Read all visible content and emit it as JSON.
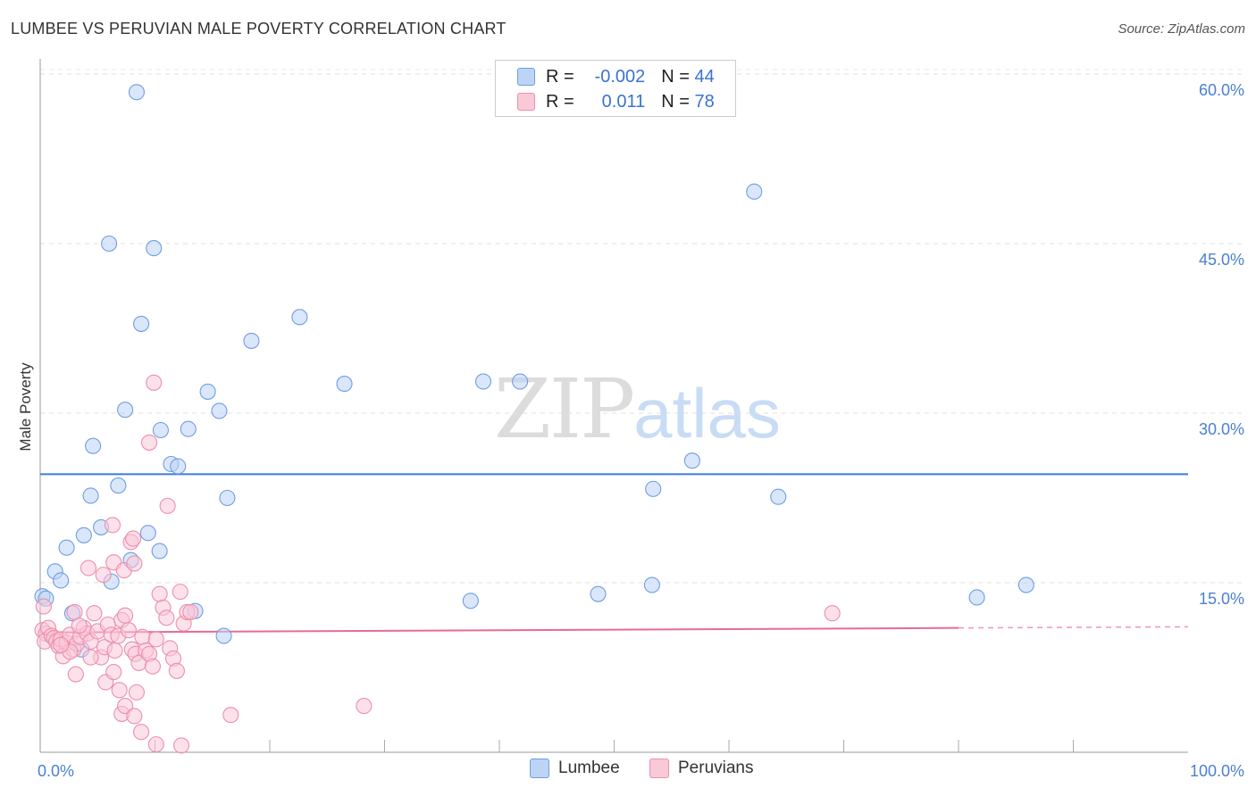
{
  "header": {
    "title": "LUMBEE VS PERUVIAN MALE POVERTY CORRELATION CHART",
    "source": "Source: ZipAtlas.com"
  },
  "watermark": {
    "zip": "ZIP",
    "atlas": "atlas"
  },
  "legend": {
    "rows": [
      {
        "r_label": "R =",
        "r_value": "-0.002",
        "n_label": "N =",
        "n_value": "44"
      },
      {
        "r_label": "R =",
        "r_value": "0.011",
        "n_label": "N =",
        "n_value": "78"
      }
    ]
  },
  "bottom_legend": {
    "lumbee": "Lumbee",
    "peruvians": "Peruvians"
  },
  "chart_data": {
    "type": "scatter",
    "title": "LUMBEE VS PERUVIAN MALE POVERTY CORRELATION CHART",
    "xlabel": "",
    "ylabel": "Male Poverty",
    "xlim": [
      0,
      100
    ],
    "ylim": [
      0,
      63
    ],
    "x_tick_labels": [
      "0.0%",
      "100.0%"
    ],
    "y_ticks": [
      15,
      30,
      45,
      60
    ],
    "y_tick_labels": [
      "15.0%",
      "30.0%",
      "45.0%",
      "60.0%"
    ],
    "colors": {
      "lumbee": "#6f9de0",
      "lumbee_fill": "#bcd4f5",
      "lumbee_line": "#3a7bd5",
      "peruvians": "#ec8fab",
      "peruvians_fill": "#f9c9d8",
      "peruvians_line": "#e96a94"
    },
    "series": [
      {
        "name": "Lumbee",
        "r": -0.002,
        "n": 44,
        "trend": {
          "x": [
            0,
            100
          ],
          "y": [
            24.6,
            24.6
          ],
          "solid_until": 100
        },
        "points": [
          [
            8.4,
            58.4
          ],
          [
            6.0,
            45.0
          ],
          [
            9.9,
            44.6
          ],
          [
            62.2,
            49.6
          ],
          [
            22.6,
            38.5
          ],
          [
            8.8,
            37.9
          ],
          [
            18.4,
            36.4
          ],
          [
            26.5,
            32.6
          ],
          [
            38.6,
            32.8
          ],
          [
            41.8,
            32.8
          ],
          [
            14.6,
            31.9
          ],
          [
            7.4,
            30.3
          ],
          [
            15.6,
            30.2
          ],
          [
            10.5,
            28.5
          ],
          [
            12.9,
            28.6
          ],
          [
            4.6,
            27.1
          ],
          [
            11.4,
            25.5
          ],
          [
            12.0,
            25.3
          ],
          [
            56.8,
            25.8
          ],
          [
            6.8,
            23.6
          ],
          [
            4.4,
            22.7
          ],
          [
            16.3,
            22.5
          ],
          [
            53.4,
            23.3
          ],
          [
            64.3,
            22.6
          ],
          [
            5.3,
            19.9
          ],
          [
            9.4,
            19.4
          ],
          [
            3.8,
            19.2
          ],
          [
            2.3,
            18.1
          ],
          [
            10.4,
            17.8
          ],
          [
            7.9,
            17.0
          ],
          [
            1.3,
            16.0
          ],
          [
            1.8,
            15.2
          ],
          [
            6.2,
            15.1
          ],
          [
            0.2,
            13.8
          ],
          [
            0.5,
            13.6
          ],
          [
            37.5,
            13.4
          ],
          [
            48.6,
            14.0
          ],
          [
            53.3,
            14.8
          ],
          [
            81.6,
            13.7
          ],
          [
            85.9,
            14.8
          ],
          [
            13.5,
            12.5
          ],
          [
            2.8,
            12.3
          ],
          [
            16.0,
            10.3
          ],
          [
            3.6,
            9.1
          ]
        ]
      },
      {
        "name": "Peruvians",
        "r": 0.011,
        "n": 78,
        "trend": {
          "x": [
            0,
            100
          ],
          "y": [
            10.6,
            11.1
          ],
          "solid_until": 80
        },
        "points": [
          [
            0.3,
            12.9
          ],
          [
            0.2,
            10.8
          ],
          [
            0.5,
            10.5
          ],
          [
            0.4,
            9.8
          ],
          [
            0.7,
            11.0
          ],
          [
            1.0,
            10.3
          ],
          [
            1.2,
            10.1
          ],
          [
            1.4,
            9.8
          ],
          [
            1.6,
            9.4
          ],
          [
            1.8,
            10.0
          ],
          [
            2.0,
            8.5
          ],
          [
            2.3,
            9.7
          ],
          [
            2.6,
            10.4
          ],
          [
            2.9,
            9.1
          ],
          [
            3.2,
            9.6
          ],
          [
            3.5,
            10.2
          ],
          [
            3.8,
            11.0
          ],
          [
            4.1,
            10.5
          ],
          [
            4.4,
            9.8
          ],
          [
            4.7,
            12.3
          ],
          [
            5.0,
            10.7
          ],
          [
            5.3,
            8.4
          ],
          [
            5.6,
            9.3
          ],
          [
            5.9,
            11.3
          ],
          [
            6.2,
            10.4
          ],
          [
            6.5,
            9.0
          ],
          [
            6.8,
            10.3
          ],
          [
            7.1,
            11.7
          ],
          [
            7.4,
            12.1
          ],
          [
            7.7,
            10.8
          ],
          [
            8.0,
            9.1
          ],
          [
            8.3,
            8.7
          ],
          [
            8.6,
            7.9
          ],
          [
            8.9,
            10.2
          ],
          [
            9.2,
            9.0
          ],
          [
            9.5,
            8.7
          ],
          [
            9.8,
            7.6
          ],
          [
            10.1,
            10.0
          ],
          [
            10.4,
            14.0
          ],
          [
            10.7,
            12.8
          ],
          [
            11.0,
            11.9
          ],
          [
            11.3,
            9.2
          ],
          [
            11.6,
            8.3
          ],
          [
            11.9,
            7.2
          ],
          [
            12.2,
            14.2
          ],
          [
            12.5,
            11.4
          ],
          [
            12.8,
            12.4
          ],
          [
            4.2,
            16.3
          ],
          [
            5.5,
            15.7
          ],
          [
            6.4,
            16.8
          ],
          [
            7.3,
            16.1
          ],
          [
            7.9,
            18.6
          ],
          [
            8.2,
            16.7
          ],
          [
            6.3,
            20.1
          ],
          [
            8.1,
            18.9
          ],
          [
            11.1,
            21.8
          ],
          [
            9.5,
            27.4
          ],
          [
            9.9,
            32.7
          ],
          [
            3.0,
            12.4
          ],
          [
            3.4,
            11.2
          ],
          [
            4.4,
            8.4
          ],
          [
            5.7,
            6.2
          ],
          [
            6.9,
            5.5
          ],
          [
            7.1,
            3.4
          ],
          [
            7.4,
            4.1
          ],
          [
            8.2,
            3.2
          ],
          [
            8.4,
            5.3
          ],
          [
            8.8,
            1.8
          ],
          [
            10.1,
            0.7
          ],
          [
            12.3,
            0.6
          ],
          [
            2.6,
            8.9
          ],
          [
            3.1,
            6.9
          ],
          [
            1.8,
            9.5
          ],
          [
            6.4,
            7.1
          ],
          [
            16.6,
            3.3
          ],
          [
            28.2,
            4.1
          ],
          [
            69.0,
            12.3
          ],
          [
            13.1,
            12.4
          ]
        ]
      }
    ]
  }
}
